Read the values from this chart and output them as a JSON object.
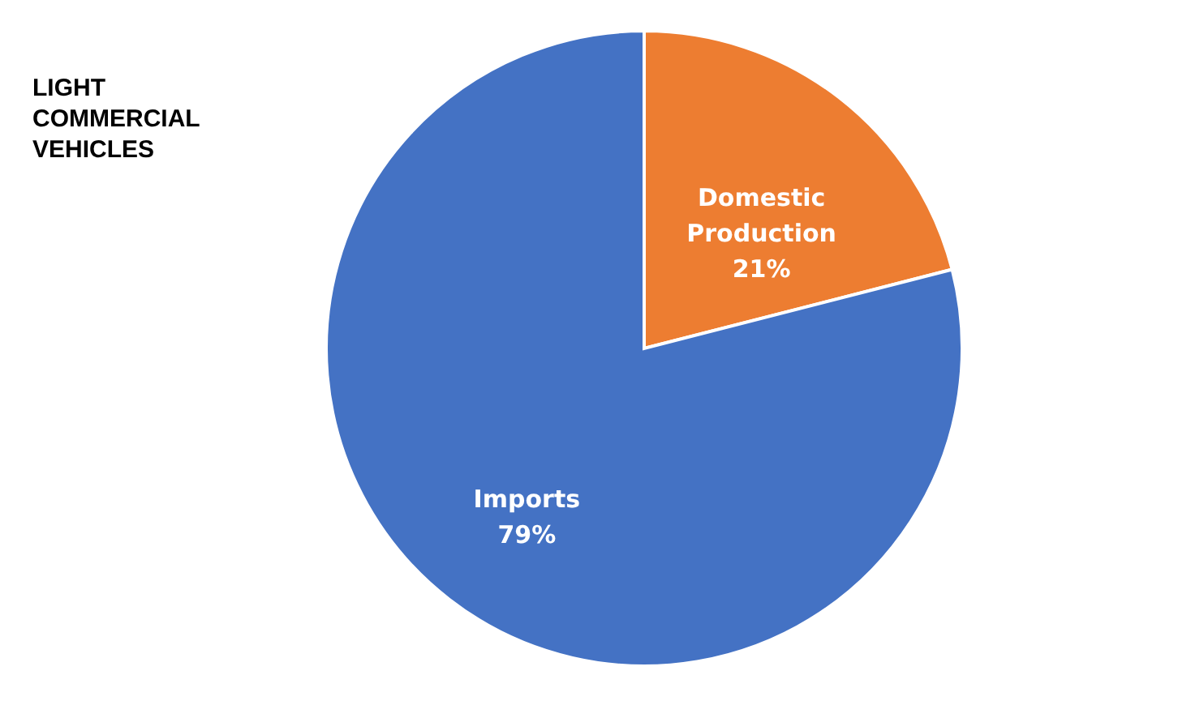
{
  "chart_data": {
    "type": "pie",
    "title": "LIGHT COMMERCIAL VEHICLES",
    "categories": [
      "Domestic Production",
      "Imports"
    ],
    "values": [
      21,
      79
    ],
    "colors": [
      "#ed7d31",
      "#4472c4"
    ],
    "value_labels": [
      "21%",
      "79%"
    ],
    "legend": false
  }
}
